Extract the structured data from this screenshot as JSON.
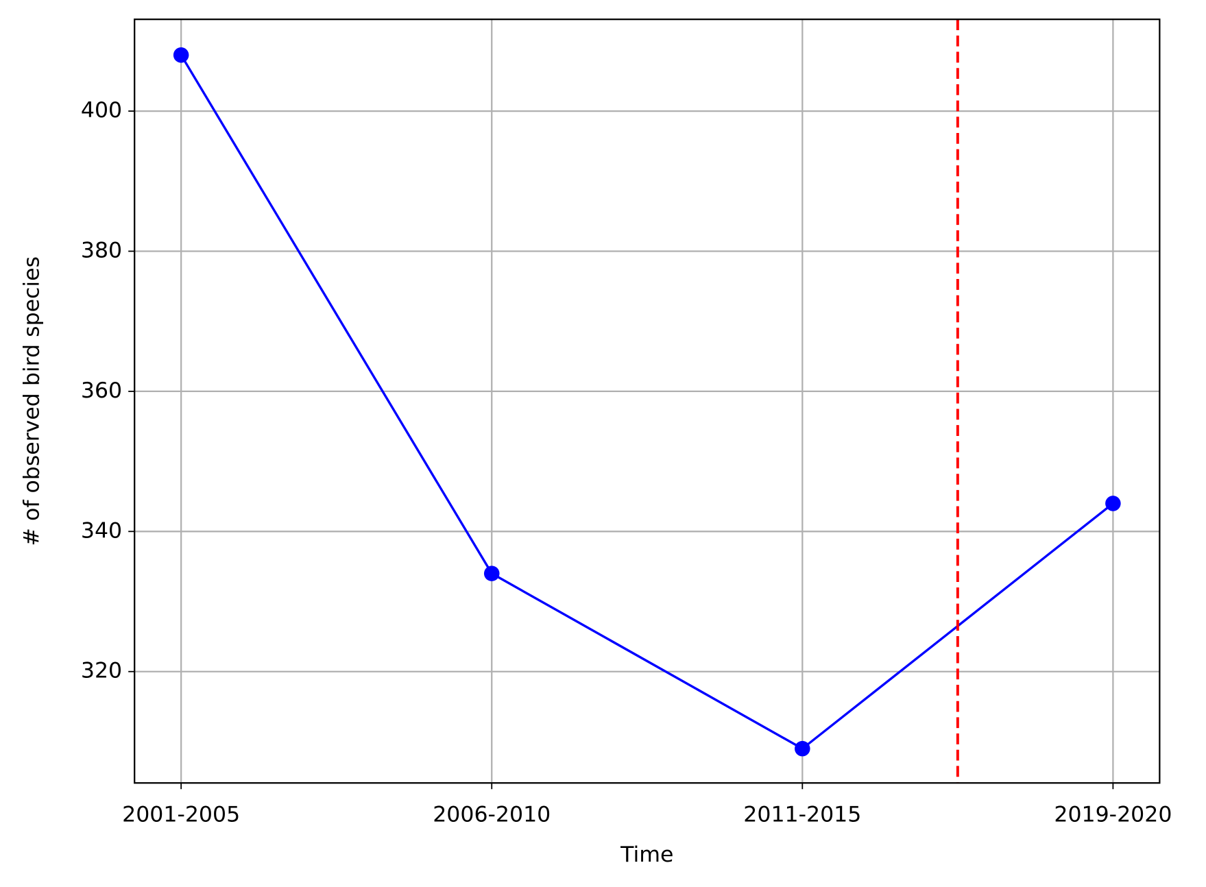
{
  "chart_data": {
    "type": "line",
    "x_label": "Time",
    "y_label": "# of observed bird species",
    "categories": [
      "2001-2005",
      "2006-2010",
      "2011-2015",
      "2019-2020"
    ],
    "series": [
      {
        "color": "#0000ff",
        "marker": "circle",
        "values": [
          408,
          334,
          309,
          344
        ]
      }
    ],
    "ylim": [
      304.1,
      413.1
    ],
    "yticks": [
      320,
      340,
      360,
      380,
      400
    ],
    "grid": true,
    "vline": {
      "position": 2.5,
      "color": "#ff0000",
      "style": "dashed"
    }
  }
}
